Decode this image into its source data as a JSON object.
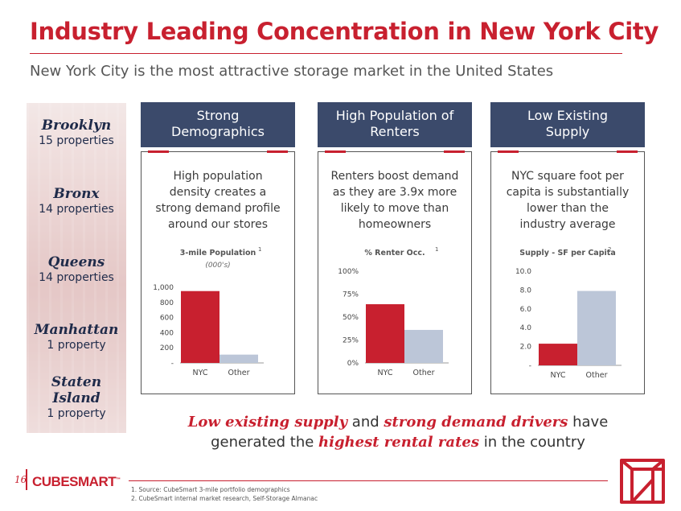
{
  "title": "Industry Leading Concentration in New York City",
  "subtitle": "New York City is the most attractive storage market in the United States",
  "boroughs": [
    {
      "name": "Brooklyn",
      "count": "15 properties"
    },
    {
      "name": "Bronx",
      "count": "14 properties"
    },
    {
      "name": "Queens",
      "count": "14 properties"
    },
    {
      "name": "Manhattan",
      "count": "1 property"
    },
    {
      "name": "Staten Island",
      "count": "1 property"
    }
  ],
  "columns": [
    {
      "header_line1": "Strong",
      "header_line2": "Demographics",
      "text": "High population density creates a strong demand profile around our stores"
    },
    {
      "header_line1": "High Population of",
      "header_line2": "Renters",
      "text": "Renters boost demand as they are 3.9x more likely to move than homeowners"
    },
    {
      "header_line1": "Low Existing",
      "header_line2": "Supply",
      "text": "NYC square foot per capita is substantially lower than the industry average"
    }
  ],
  "colors": {
    "nyc": "#c8202f",
    "other": "#bcc6d8",
    "header": "#3b4a6b",
    "accent": "#c8202f"
  },
  "chart_data": [
    {
      "type": "bar",
      "title": "3-mile Population",
      "title_sup": "1",
      "subtitle": "(000's)",
      "categories": [
        "NYC",
        "Other"
      ],
      "values": [
        950,
        110
      ],
      "ylim": [
        0,
        1000
      ],
      "yticks": [
        0,
        200,
        400,
        600,
        800,
        1000
      ],
      "yticklabels": [
        "-",
        "200",
        "400",
        "600",
        "800",
        "1,000"
      ]
    },
    {
      "type": "bar",
      "title": "% Renter Occ.",
      "title_sup": "1",
      "categories": [
        "NYC",
        "Other"
      ],
      "values": [
        0.64,
        0.36
      ],
      "ylim": [
        0,
        1
      ],
      "yticks": [
        0,
        0.25,
        0.5,
        0.75,
        1.0
      ],
      "yticklabels": [
        "0%",
        "25%",
        "50%",
        "75%",
        "100%"
      ]
    },
    {
      "type": "bar",
      "title": "Supply - SF per Capita",
      "title_sup": "2",
      "categories": [
        "NYC",
        "Other"
      ],
      "values": [
        2.3,
        7.9
      ],
      "ylim": [
        0,
        10
      ],
      "yticks": [
        0,
        2,
        4,
        6,
        8,
        10
      ],
      "yticklabels": [
        "-",
        "2.0",
        "4.0",
        "6.0",
        "8.0",
        "10.0"
      ]
    }
  ],
  "tagline": {
    "p1": "Low existing supply",
    "p2": " and ",
    "p3": "strong demand drivers",
    "p4": " have generated the ",
    "p5": "highest rental rates",
    "p6": " in the country"
  },
  "footer": {
    "page_number": "16",
    "logo": "CUBESMART",
    "logo_tm": "™",
    "footnote1": "1.   Source: CubeSmart 3-mile portfolio demographics",
    "footnote2": "2.   CubeSmart internal market research, Self-Storage Almanac"
  }
}
